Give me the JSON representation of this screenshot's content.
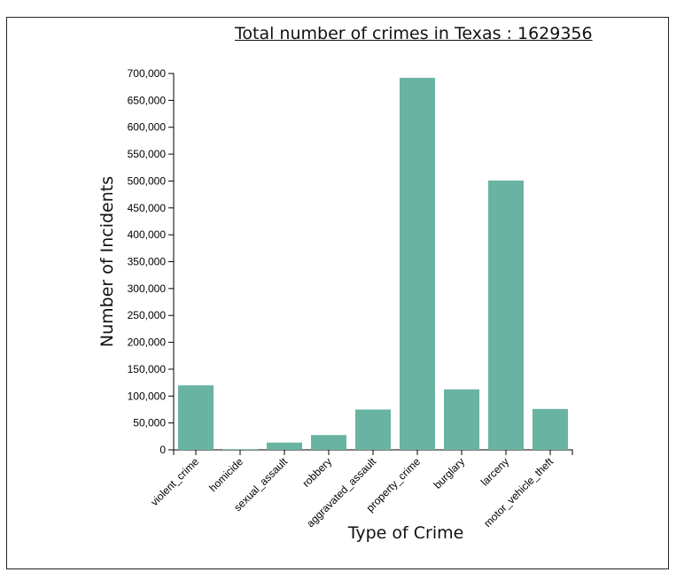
{
  "chart_data": {
    "type": "bar",
    "title": "Total number of crimes in Texas : 1629356",
    "xlabel": "Type of Crime",
    "ylabel": "Number of Incidents",
    "categories": [
      "violent_crime",
      "homicide",
      "sexual_assault",
      "robbery",
      "aggravated_assault",
      "property_crime",
      "burglary",
      "larceny",
      "motor_vehicle_theft"
    ],
    "values": [
      120000,
      1200,
      13500,
      27500,
      75000,
      692000,
      112500,
      501000,
      76000
    ],
    "ylim": [
      0,
      700000
    ],
    "yticks": [
      0,
      50000,
      100000,
      150000,
      200000,
      250000,
      300000,
      350000,
      400000,
      450000,
      500000,
      550000,
      600000,
      650000,
      700000
    ],
    "ytick_labels": [
      "0",
      "50,000",
      "100,000",
      "150,000",
      "200,000",
      "250,000",
      "300,000",
      "350,000",
      "400,000",
      "450,000",
      "500,000",
      "550,000",
      "600,000",
      "650,000",
      "700,000"
    ],
    "grid": false,
    "bar_color": "#69b3a2"
  }
}
